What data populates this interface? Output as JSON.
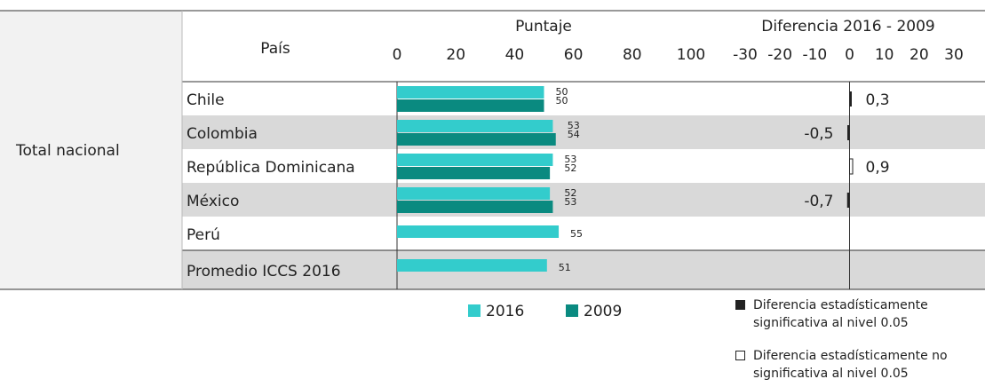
{
  "chart_data": {
    "type": "bar",
    "row_group": "Total nacional",
    "category_header": "País",
    "categories": [
      "Chile",
      "Colombia",
      "República Dominicana",
      "México",
      "Perú",
      "Promedio ICCS 2016"
    ],
    "score_axis": {
      "title": "Puntaje",
      "xlim": [
        0,
        100
      ],
      "xticks": [
        0,
        20,
        40,
        60,
        80,
        100
      ]
    },
    "series": [
      {
        "name": "2016",
        "color": "#33cccc",
        "values": [
          50,
          53,
          53,
          52,
          55,
          51
        ]
      },
      {
        "name": "2009",
        "color": "#0a8a80",
        "values": [
          50,
          54,
          52,
          53,
          null,
          null
        ]
      }
    ],
    "difference": {
      "title": "Diferencia 2016 - 2009",
      "xlim": [
        -30,
        30
      ],
      "xticks": [
        -30,
        -20,
        -10,
        0,
        10,
        20,
        30
      ],
      "values": [
        0.3,
        -0.5,
        0.9,
        -0.7,
        null,
        null
      ],
      "value_labels": [
        "0,3",
        "-0,5",
        "0,9",
        "-0,7",
        null,
        null
      ],
      "significant": [
        true,
        true,
        false,
        true,
        null,
        null
      ]
    },
    "significance_legend": [
      {
        "label": "Diferencia estadísticamente significativa al nivel 0.05",
        "filled": true
      },
      {
        "label": "Diferencia estadísticamente no significativa al nivel 0.05",
        "filled": false
      }
    ]
  }
}
